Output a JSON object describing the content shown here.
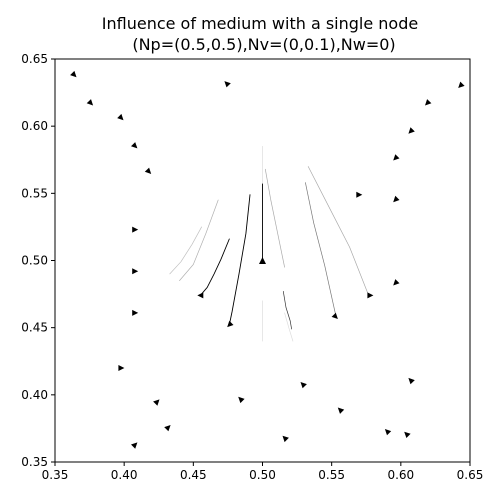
{
  "chart_data": {
    "type": "quiver",
    "title_lines": [
      "Influence of medium with a single node",
      "(Np=(0.5,0.5),Nv=(0,0.1),Nw=0)"
    ],
    "xlabel": "",
    "ylabel": "",
    "xlim": [
      0.35,
      0.65
    ],
    "ylim": [
      0.35,
      0.65
    ],
    "xticks": [
      "0.35",
      "0.40",
      "0.45",
      "0.50",
      "0.55",
      "0.60",
      "0.65"
    ],
    "yticks": [
      "0.35",
      "0.40",
      "0.45",
      "0.50",
      "0.55",
      "0.60",
      "0.65"
    ],
    "grid": false,
    "node": {
      "x": 0.5,
      "y": 0.5,
      "direction": "up"
    },
    "trajectories": [
      {
        "points": [
          [
            0.491,
            0.549
          ],
          [
            0.488,
            0.52
          ],
          [
            0.483,
            0.49
          ],
          [
            0.478,
            0.462
          ],
          [
            0.476,
            0.452
          ]
        ],
        "end": [
          0.476,
          0.452
        ],
        "shade": "#000000"
      },
      {
        "points": [
          [
            0.476,
            0.516
          ],
          [
            0.47,
            0.501
          ],
          [
            0.465,
            0.49
          ],
          [
            0.46,
            0.48
          ],
          [
            0.455,
            0.474
          ]
        ],
        "end": [
          0.455,
          0.474
        ],
        "shade": "#000000"
      },
      {
        "points": [
          [
            0.5,
            0.557
          ],
          [
            0.5,
            0.532
          ],
          [
            0.5,
            0.508
          ],
          [
            0.5,
            0.5
          ]
        ],
        "end": [
          0.5,
          0.5
        ],
        "shade": "#000000"
      },
      {
        "points": [
          [
            0.515,
            0.477
          ],
          [
            0.517,
            0.465
          ],
          [
            0.52,
            0.455
          ],
          [
            0.521,
            0.449
          ]
        ],
        "end": [
          0.521,
          0.449
        ],
        "shade": "#333333"
      },
      {
        "points": [
          [
            0.531,
            0.558
          ],
          [
            0.537,
            0.528
          ],
          [
            0.545,
            0.496
          ],
          [
            0.553,
            0.459
          ]
        ],
        "end": [
          0.553,
          0.459
        ],
        "shade": "#777777"
      },
      {
        "points": [
          [
            0.502,
            0.568
          ],
          [
            0.506,
            0.545
          ],
          [
            0.511,
            0.52
          ],
          [
            0.516,
            0.495
          ]
        ],
        "end": [
          0.516,
          0.495
        ],
        "shade": "#aaaaaa"
      },
      {
        "points": [
          [
            0.533,
            0.57
          ],
          [
            0.548,
            0.54
          ],
          [
            0.563,
            0.51
          ],
          [
            0.576,
            0.476
          ]
        ],
        "end": [
          0.576,
          0.476
        ],
        "shade": "#aaaaaa"
      },
      {
        "points": [
          [
            0.468,
            0.545
          ],
          [
            0.459,
            0.52
          ],
          [
            0.45,
            0.497
          ],
          [
            0.44,
            0.485
          ]
        ],
        "end": [
          0.44,
          0.485
        ],
        "shade": "#b0b0b0"
      },
      {
        "points": [
          [
            0.456,
            0.525
          ],
          [
            0.449,
            0.512
          ],
          [
            0.441,
            0.499
          ],
          [
            0.433,
            0.49
          ]
        ],
        "end": [
          0.433,
          0.49
        ],
        "shade": "#c0c0c0"
      },
      {
        "points": [
          [
            0.5,
            0.585
          ],
          [
            0.5,
            0.555
          ],
          [
            0.5,
            0.52
          ]
        ],
        "end": [
          0.5,
          0.52
        ],
        "shade": "#dddddd"
      },
      {
        "points": [
          [
            0.5,
            0.47
          ],
          [
            0.5,
            0.455
          ],
          [
            0.5,
            0.44
          ]
        ],
        "end": [
          0.5,
          0.44
        ],
        "shade": "#dddddd"
      },
      {
        "points": [
          [
            0.516,
            0.461
          ],
          [
            0.519,
            0.45
          ],
          [
            0.522,
            0.44
          ]
        ],
        "end": [
          0.522,
          0.44
        ],
        "shade": "#dddddd"
      }
    ],
    "arrows": [
      {
        "x": 0.364,
        "y": 0.638,
        "direction": "down-right"
      },
      {
        "x": 0.376,
        "y": 0.617,
        "direction": "down-right"
      },
      {
        "x": 0.398,
        "y": 0.606,
        "direction": "down-right"
      },
      {
        "x": 0.408,
        "y": 0.585,
        "direction": "down-right"
      },
      {
        "x": 0.418,
        "y": 0.566,
        "direction": "down-right"
      },
      {
        "x": 0.474,
        "y": 0.632,
        "direction": "up-left"
      },
      {
        "x": 0.408,
        "y": 0.523,
        "direction": "right"
      },
      {
        "x": 0.408,
        "y": 0.492,
        "direction": "right"
      },
      {
        "x": 0.408,
        "y": 0.461,
        "direction": "right"
      },
      {
        "x": 0.398,
        "y": 0.42,
        "direction": "right"
      },
      {
        "x": 0.424,
        "y": 0.395,
        "direction": "up-right"
      },
      {
        "x": 0.432,
        "y": 0.376,
        "direction": "up-right"
      },
      {
        "x": 0.408,
        "y": 0.363,
        "direction": "up-right"
      },
      {
        "x": 0.455,
        "y": 0.474,
        "direction": "left"
      },
      {
        "x": 0.476,
        "y": 0.452,
        "direction": "down-left"
      },
      {
        "x": 0.484,
        "y": 0.397,
        "direction": "up-left"
      },
      {
        "x": 0.516,
        "y": 0.368,
        "direction": "up-left"
      },
      {
        "x": 0.529,
        "y": 0.408,
        "direction": "up-left"
      },
      {
        "x": 0.553,
        "y": 0.458,
        "direction": "down-right"
      },
      {
        "x": 0.556,
        "y": 0.389,
        "direction": "up-left"
      },
      {
        "x": 0.57,
        "y": 0.549,
        "direction": "right"
      },
      {
        "x": 0.578,
        "y": 0.474,
        "direction": "right"
      },
      {
        "x": 0.59,
        "y": 0.373,
        "direction": "up-left"
      },
      {
        "x": 0.596,
        "y": 0.576,
        "direction": "down-left"
      },
      {
        "x": 0.596,
        "y": 0.545,
        "direction": "down-left"
      },
      {
        "x": 0.596,
        "y": 0.483,
        "direction": "down-left"
      },
      {
        "x": 0.604,
        "y": 0.371,
        "direction": "up-left"
      },
      {
        "x": 0.607,
        "y": 0.596,
        "direction": "down-left"
      },
      {
        "x": 0.607,
        "y": 0.411,
        "direction": "up-left"
      },
      {
        "x": 0.619,
        "y": 0.617,
        "direction": "down-left"
      },
      {
        "x": 0.643,
        "y": 0.63,
        "direction": "down-left"
      }
    ]
  }
}
